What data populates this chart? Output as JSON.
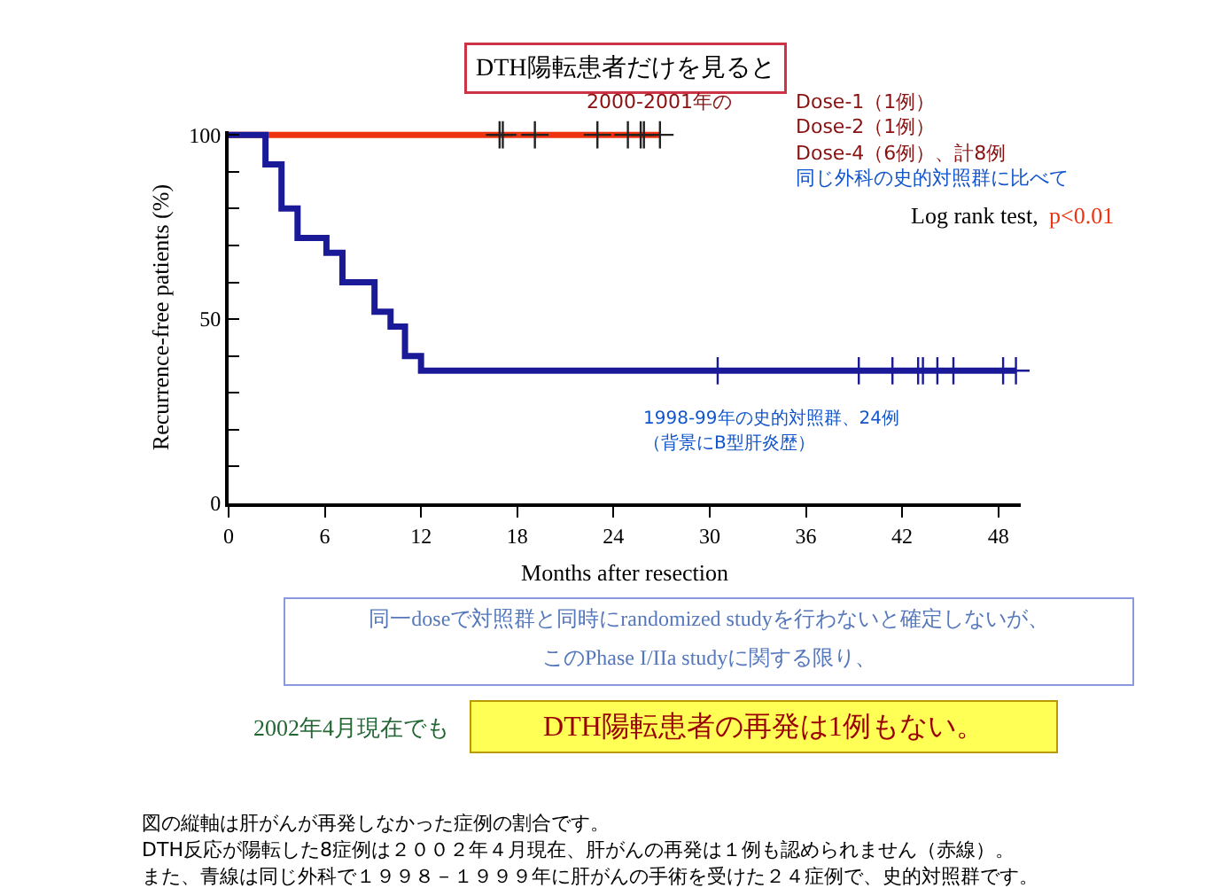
{
  "chart_data": {
    "type": "step",
    "title": "DTH陽転患者だけを見ると",
    "xlabel": "Months after resection",
    "ylabel": "Recurrence-free patients (%)",
    "xlim": [
      0,
      49.4
    ],
    "ylim": [
      0,
      101
    ],
    "xticks": [
      0,
      6,
      12,
      18,
      24,
      30,
      36,
      42,
      48
    ],
    "yticks": [
      0,
      {
        "value": 10,
        "label": null
      },
      {
        "value": 20,
        "label": null
      },
      {
        "value": 30,
        "label": null
      },
      {
        "value": 40,
        "label": null
      },
      50,
      {
        "value": 60,
        "label": null
      },
      {
        "value": 70,
        "label": null
      },
      {
        "value": 80,
        "label": null
      },
      {
        "value": 90,
        "label": null
      },
      100
    ],
    "series": [
      {
        "color": "#ee3311",
        "x": [
          0,
          26.9
        ],
        "values": [
          100,
          100
        ]
      },
      {
        "color": "#1a1a99",
        "x": [
          0,
          2.3,
          3.3,
          4.3,
          6.1,
          7.1,
          9.1,
          10.1,
          11.0,
          12.0,
          49.1
        ],
        "values": [
          100,
          92,
          80,
          72,
          68,
          60,
          52,
          48,
          40,
          36,
          36
        ]
      },
      {
        "type": "scatter",
        "marker": "cross",
        "color": "#222222",
        "x": [
          16.9,
          17.1,
          19.1,
          23.0,
          24.9,
          25.7,
          25.9,
          26.9
        ],
        "values": [
          100,
          100,
          100,
          100,
          100,
          100,
          100,
          100
        ]
      },
      {
        "type": "scatter",
        "marker": "cross",
        "color": "#1a1a99",
        "x": [
          30.5,
          39.3,
          41.4,
          43.0,
          43.3,
          44.2,
          45.2,
          48.3,
          49.1
        ],
        "values": [
          36,
          36,
          36,
          36,
          36,
          36,
          36,
          36,
          36
        ]
      }
    ],
    "annotations": [
      "2000-2001年の",
      "Dose-1（1例）",
      "Dose-2（1例）",
      "Dose-4（6例）、計8例",
      "同じ外科の史的対照群に比べて",
      "Log rank test,",
      "p<0.01",
      "1998-99年の史的対照群、24例",
      "（背景にB型肝炎歴）",
      "同一doseで対照群と同時にrandomized studyを行わないと確定しないが、",
      "このPhase I/IIa studyに関する限り、",
      "2002年4月現在でも",
      "DTH陽転患者の再発は1例もない。",
      "図の縦軸は肝がんが再発しなかった症例の割合です。",
      "DTH反応が陽転した8症例は２００２年４月現在、肝がんの再発は１例も認められません（赤線）。",
      "また、青線は同じ外科で１９９８－１９９９年に肝がんの手術を受けた２４症例で、史的対照群です。"
    ]
  }
}
